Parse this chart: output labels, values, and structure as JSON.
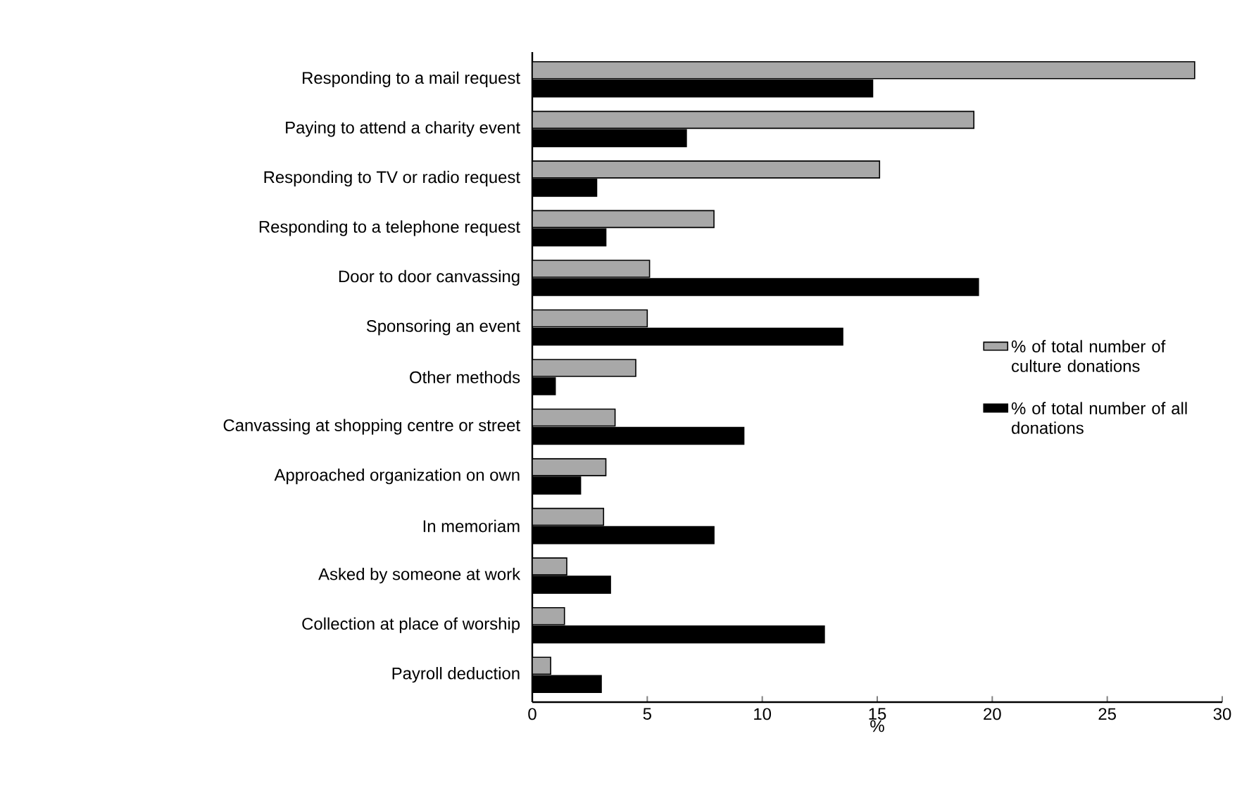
{
  "chart_data": {
    "type": "bar",
    "orientation": "horizontal",
    "xlabel": "%",
    "categories": [
      "Responding to a mail request",
      "Paying to attend a charity event",
      "Responding to TV or radio request",
      "Responding to a telephone request",
      "Door to door canvassing",
      "Sponsoring an event",
      "Other methods",
      "Canvassing at shopping centre or street",
      "Approached organization on own",
      "In memoriam",
      "Asked by someone at work",
      "Collection at place of worship",
      "Payroll deduction"
    ],
    "series": [
      {
        "name": "% of total number of culture donations",
        "color": "#a8a8a8",
        "values": [
          28.8,
          19.2,
          15.1,
          7.9,
          5.1,
          5.0,
          4.5,
          3.6,
          3.2,
          3.1,
          1.5,
          1.4,
          0.8
        ]
      },
      {
        "name": "% of total number of all donations",
        "color": "#000000",
        "values": [
          14.8,
          6.7,
          2.8,
          3.2,
          19.4,
          13.5,
          1.0,
          9.2,
          2.1,
          7.9,
          3.4,
          12.7,
          3.0
        ]
      }
    ],
    "xlim": [
      0,
      30
    ],
    "xticks": [
      0,
      5,
      10,
      15,
      20,
      25,
      30
    ],
    "legend": "right"
  }
}
